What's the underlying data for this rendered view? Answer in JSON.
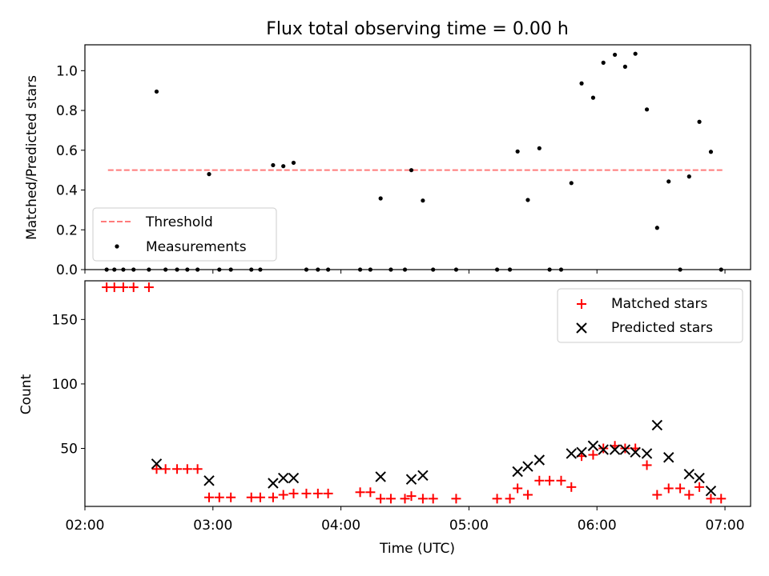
{
  "chart_data": [
    {
      "type": "scatter",
      "title": "Flux total observing time = 0.00 h",
      "xlabel": "",
      "ylabel": "Matched/Predicted stars",
      "xlim": [
        2.0,
        7.2
      ],
      "ylim": [
        0.0,
        1.13
      ],
      "yticks": [
        0.0,
        0.2,
        0.4,
        0.6,
        0.8,
        1.0
      ],
      "ytick_labels": [
        "0.0",
        "0.2",
        "0.4",
        "0.6",
        "0.8",
        "1.0"
      ],
      "grid": false,
      "legend": "lower-left",
      "threshold": {
        "name": "Threshold",
        "value": 0.5,
        "x": [
          2.18,
          6.98
        ],
        "color": "#ff7b7b"
      },
      "series": [
        {
          "name": "Measurements",
          "color": "#000000",
          "x": [
            2.17,
            2.23,
            2.3,
            2.38,
            2.5,
            2.56,
            2.63,
            2.72,
            2.8,
            2.88,
            2.97,
            3.05,
            3.14,
            3.3,
            3.37,
            3.47,
            3.55,
            3.63,
            3.73,
            3.82,
            3.9,
            4.15,
            4.23,
            4.31,
            4.39,
            4.5,
            4.55,
            4.64,
            4.72,
            4.9,
            5.22,
            5.32,
            5.38,
            5.46,
            5.55,
            5.63,
            5.72,
            5.8,
            5.88,
            5.97,
            6.05,
            6.14,
            6.22,
            6.3,
            6.39,
            6.47,
            6.56,
            6.65,
            6.72,
            6.8,
            6.89,
            6.97
          ],
          "y": [
            0,
            0,
            0,
            0,
            0,
            0.895,
            0,
            0,
            0,
            0,
            0.48,
            0,
            0,
            0,
            0,
            0.525,
            0.52,
            0.537,
            0,
            0,
            0,
            0,
            0,
            0.358,
            0,
            0,
            0.5,
            0.347,
            0,
            0,
            0,
            0,
            0.594,
            0.35,
            0.61,
            0,
            0,
            0.435,
            0.936,
            0.864,
            1.04,
            1.08,
            1.02,
            1.085,
            0.805,
            0.21,
            0.443,
            0,
            0.468,
            0.743,
            0.592,
            0
          ]
        }
      ]
    },
    {
      "type": "scatter",
      "title": "",
      "xlabel": "Time (UTC)",
      "ylabel": "Count",
      "xlim": [
        2.0,
        7.2
      ],
      "ylim": [
        5,
        180
      ],
      "yticks": [
        50,
        100,
        150
      ],
      "ytick_labels": [
        "50",
        "100",
        "150"
      ],
      "xticks": [
        2,
        3,
        4,
        5,
        6,
        7
      ],
      "xtick_labels": [
        "02:00",
        "03:00",
        "04:00",
        "05:00",
        "06:00",
        "07:00"
      ],
      "grid": false,
      "legend": "upper-right",
      "series": [
        {
          "name": "Matched stars",
          "marker": "plus",
          "color": "#ff0000",
          "x": [
            2.17,
            2.23,
            2.3,
            2.38,
            2.5,
            2.56,
            2.63,
            2.72,
            2.8,
            2.88,
            2.97,
            3.05,
            3.14,
            3.3,
            3.37,
            3.47,
            3.55,
            3.63,
            3.73,
            3.82,
            3.9,
            4.15,
            4.23,
            4.31,
            4.39,
            4.5,
            4.55,
            4.64,
            4.72,
            4.9,
            5.22,
            5.32,
            5.38,
            5.46,
            5.55,
            5.63,
            5.72,
            5.8,
            5.88,
            5.97,
            6.05,
            6.14,
            6.22,
            6.3,
            6.39,
            6.47,
            6.56,
            6.65,
            6.72,
            6.8,
            6.89,
            6.97
          ],
          "y": [
            175,
            175,
            175,
            175,
            175,
            34,
            34,
            34,
            34,
            34,
            12,
            12,
            12,
            12,
            12,
            12,
            14,
            15,
            15,
            15,
            15,
            16,
            16,
            11,
            11,
            11,
            13,
            11,
            11,
            11,
            11,
            11,
            19,
            14,
            25,
            25,
            25,
            20,
            44,
            45,
            50,
            52,
            50,
            50,
            37,
            14,
            19,
            19,
            14,
            20,
            11,
            11
          ]
        },
        {
          "name": "Predicted stars",
          "marker": "x",
          "color": "#000000",
          "x": [
            2.56,
            2.97,
            3.47,
            3.55,
            3.63,
            4.31,
            4.55,
            4.64,
            5.38,
            5.46,
            5.55,
            5.8,
            5.88,
            5.97,
            6.05,
            6.14,
            6.22,
            6.3,
            6.39,
            6.47,
            6.56,
            6.72,
            6.8,
            6.89
          ],
          "y": [
            38,
            25,
            23,
            27,
            27,
            28,
            26,
            29,
            32,
            36,
            41,
            46,
            47,
            52,
            49,
            49,
            49,
            47,
            46,
            68,
            43,
            30,
            27,
            17
          ]
        }
      ]
    }
  ]
}
